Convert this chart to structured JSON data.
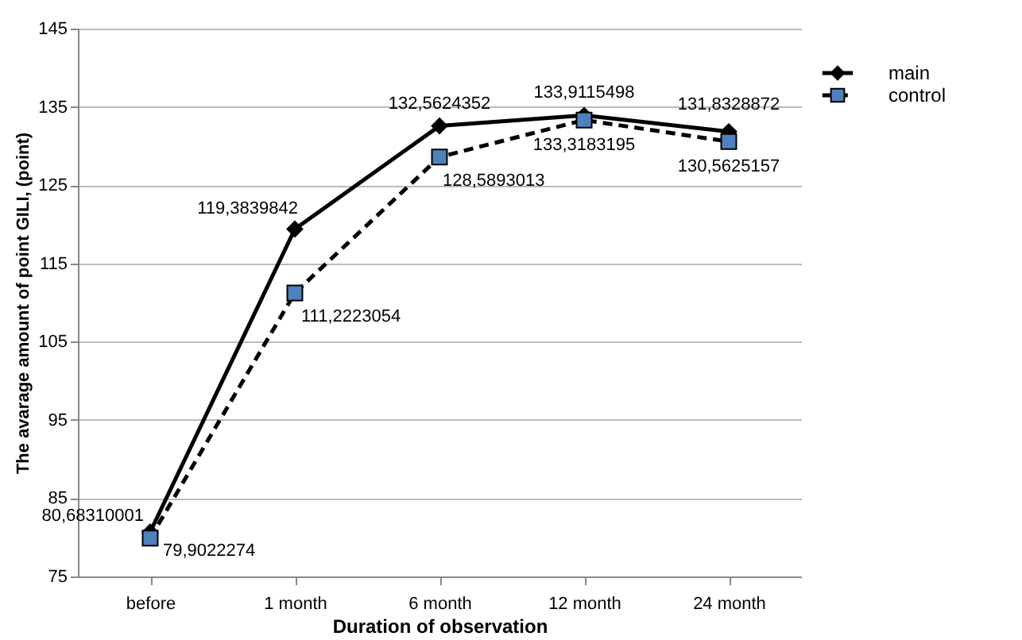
{
  "chart_data": {
    "type": "line",
    "xlabel": "Duration of observation",
    "ylabel": "The avarage amount of point GILI, (point)",
    "categories": [
      "before",
      "1 month",
      "6 month",
      "12 month",
      "24 month"
    ],
    "ylim": [
      75,
      145
    ],
    "yticks": [
      75,
      85,
      95,
      105,
      115,
      125,
      135,
      145
    ],
    "grid": "y",
    "legend": "right",
    "series": [
      {
        "name": "main",
        "color": "#000000",
        "marker": "diamond",
        "line_style": "solid",
        "values": [
          80.68310001,
          119.3839842,
          132.5624352,
          133.9115498,
          131.8328872
        ],
        "value_labels": [
          "80,68310001",
          "119,3839842",
          "132,5624352",
          "133,9115498",
          "131,8328872"
        ]
      },
      {
        "name": "control",
        "color": "#4f81bd",
        "marker": "square",
        "line_style": "dashed",
        "values": [
          79.9022274,
          111.2223054,
          128.5893013,
          133.3183195,
          130.5625157
        ],
        "value_labels": [
          "79,9022274",
          "111,2223054",
          "128,5893013",
          "133,3183195",
          "130,5625157"
        ]
      }
    ]
  }
}
